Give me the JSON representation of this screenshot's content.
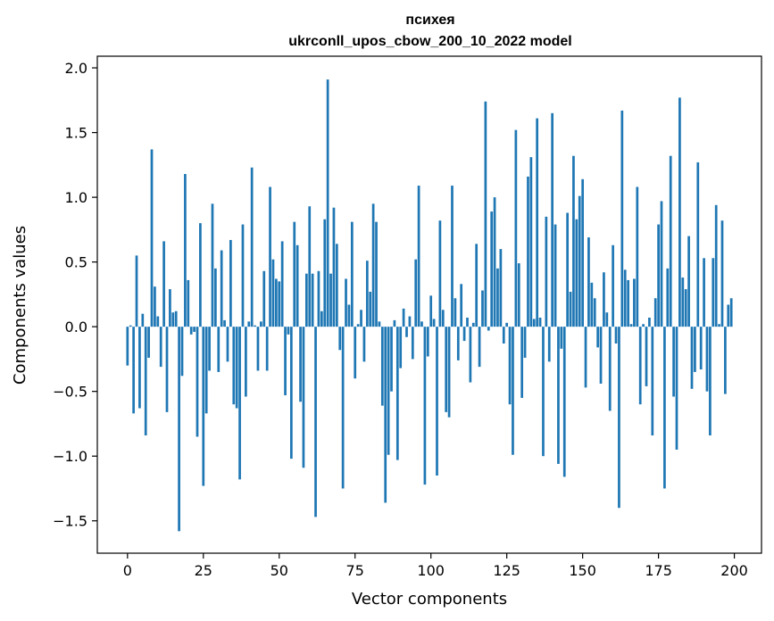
{
  "chart_data": {
    "type": "bar",
    "title": "психея",
    "subtitle": "ukrconll_upos_cbow_200_10_2022 model",
    "xlabel": "Vector components",
    "ylabel": "Components values",
    "xlim": [
      -9.95,
      208.95
    ],
    "ylim": [
      -1.75,
      2.09
    ],
    "x_ticks": [
      0,
      25,
      50,
      75,
      100,
      125,
      150,
      175,
      200
    ],
    "y_ticks": [
      -1.5,
      -1.0,
      -0.5,
      0.0,
      0.5,
      1.0,
      1.5,
      2.0
    ],
    "y_tick_labels": [
      "−1.5",
      "−1.0",
      "−0.5",
      "0.0",
      "0.5",
      "1.0",
      "1.5",
      "2.0"
    ],
    "grid": false,
    "bar_color": "#1f77b4",
    "x": [
      0,
      1,
      2,
      3,
      4,
      5,
      6,
      7,
      8,
      9,
      10,
      11,
      12,
      13,
      14,
      15,
      16,
      17,
      18,
      19,
      20,
      21,
      22,
      23,
      24,
      25,
      26,
      27,
      28,
      29,
      30,
      31,
      32,
      33,
      34,
      35,
      36,
      37,
      38,
      39,
      40,
      41,
      42,
      43,
      44,
      45,
      46,
      47,
      48,
      49,
      50,
      51,
      52,
      53,
      54,
      55,
      56,
      57,
      58,
      59,
      60,
      61,
      62,
      63,
      64,
      65,
      66,
      67,
      68,
      69,
      70,
      71,
      72,
      73,
      74,
      75,
      76,
      77,
      78,
      79,
      80,
      81,
      82,
      83,
      84,
      85,
      86,
      87,
      88,
      89,
      90,
      91,
      92,
      93,
      94,
      95,
      96,
      97,
      98,
      99,
      100,
      101,
      102,
      103,
      104,
      105,
      106,
      107,
      108,
      109,
      110,
      111,
      112,
      113,
      114,
      115,
      116,
      117,
      118,
      119,
      120,
      121,
      122,
      123,
      124,
      125,
      126,
      127,
      128,
      129,
      130,
      131,
      132,
      133,
      134,
      135,
      136,
      137,
      138,
      139,
      140,
      141,
      142,
      143,
      144,
      145,
      146,
      147,
      148,
      149,
      150,
      151,
      152,
      153,
      154,
      155,
      156,
      157,
      158,
      159,
      160,
      161,
      162,
      163,
      164,
      165,
      166,
      167,
      168,
      169,
      170,
      171,
      172,
      173,
      174,
      175,
      176,
      177,
      178,
      179,
      180,
      181,
      182,
      183,
      184,
      185,
      186,
      187,
      188,
      189,
      190,
      191,
      192,
      193,
      194,
      195,
      196,
      197,
      198,
      199
    ],
    "values": [
      -0.3,
      0.01,
      -0.67,
      0.55,
      -0.63,
      0.1,
      -0.84,
      -0.24,
      1.37,
      0.31,
      0.08,
      -0.31,
      0.66,
      -0.66,
      0.29,
      0.11,
      0.12,
      -1.58,
      -0.38,
      1.18,
      0.36,
      -0.06,
      -0.04,
      -0.85,
      0.8,
      -1.23,
      -0.67,
      -0.34,
      0.95,
      0.45,
      -0.35,
      0.59,
      0.05,
      -0.27,
      0.67,
      -0.6,
      -0.63,
      -1.18,
      0.79,
      -0.54,
      0.04,
      1.23,
      0.01,
      -0.34,
      0.04,
      0.43,
      -0.34,
      1.08,
      0.52,
      0.37,
      0.35,
      0.66,
      -0.53,
      -0.06,
      -1.02,
      0.81,
      0.63,
      -0.58,
      -1.09,
      0.41,
      0.93,
      0.41,
      -1.47,
      0.43,
      0.12,
      0.83,
      1.91,
      0.41,
      0.92,
      0.64,
      -0.18,
      -1.25,
      0.37,
      0.17,
      0.81,
      -0.4,
      0.02,
      0.13,
      -0.27,
      0.51,
      0.27,
      0.95,
      0.81,
      0.04,
      -0.61,
      -1.36,
      -0.99,
      -0.5,
      0.05,
      -1.03,
      -0.32,
      0.14,
      -0.08,
      0.08,
      -0.25,
      0.52,
      1.09,
      0.04,
      -1.22,
      -0.23,
      0.24,
      0.06,
      -1.15,
      0.82,
      0.13,
      -0.66,
      -0.7,
      1.09,
      0.22,
      -0.26,
      0.33,
      -0.11,
      0.07,
      -0.43,
      0.03,
      0.64,
      -0.31,
      0.28,
      1.74,
      -0.03,
      0.89,
      1.0,
      0.45,
      0.6,
      -0.13,
      0.03,
      -0.6,
      -0.99,
      1.52,
      0.49,
      -0.55,
      -0.24,
      1.16,
      1.31,
      0.06,
      1.61,
      0.07,
      -1.0,
      0.85,
      -0.27,
      1.65,
      0.79,
      -1.06,
      -0.17,
      -1.16,
      0.88,
      0.27,
      1.32,
      0.83,
      1.01,
      1.14,
      -0.47,
      0.69,
      0.34,
      0.22,
      -0.16,
      -0.44,
      0.42,
      0.11,
      -0.65,
      0.63,
      -0.13,
      -1.4,
      1.67,
      0.44,
      0.36,
      0.02,
      0.37,
      1.08,
      -0.6,
      0.02,
      -0.46,
      0.07,
      -0.84,
      0.22,
      0.79,
      0.97,
      -1.25,
      0.45,
      1.32,
      -0.54,
      -0.95,
      1.77,
      0.38,
      0.29,
      0.7,
      -0.48,
      -0.35,
      1.27,
      -0.33,
      0.53,
      -0.5,
      -0.84,
      0.53,
      0.94,
      0.02,
      0.82,
      -0.52,
      0.17,
      0.22
    ]
  }
}
